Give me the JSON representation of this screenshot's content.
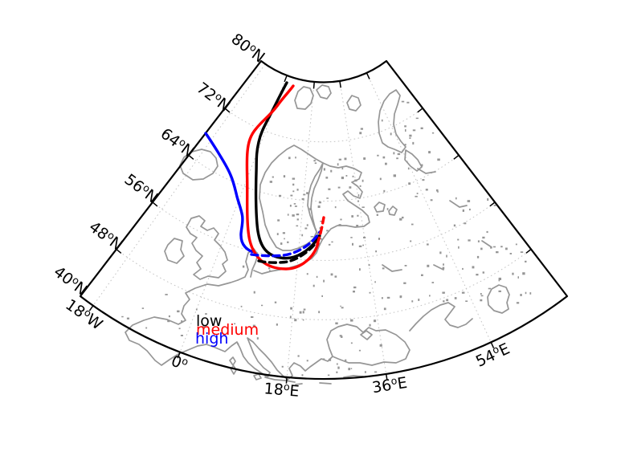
{
  "figure": {
    "background": "#ffffff",
    "kind": "fan-shaped conic map of Europe with three trajectories"
  },
  "axes": {
    "lat_labels": [
      {
        "value": "80",
        "sup": "o",
        "hem": "N"
      },
      {
        "value": "72",
        "sup": "o",
        "hem": "N"
      },
      {
        "value": "64",
        "sup": "o",
        "hem": "N"
      },
      {
        "value": "56",
        "sup": "o",
        "hem": "N"
      },
      {
        "value": "48",
        "sup": "o",
        "hem": "N"
      },
      {
        "value": "40",
        "sup": "o",
        "hem": "N"
      }
    ],
    "lon_labels": [
      {
        "value": "18",
        "sup": "o",
        "hem": "W"
      },
      {
        "value": "0",
        "sup": "o",
        "hem": ""
      },
      {
        "value": "18",
        "sup": "o",
        "hem": "E"
      },
      {
        "value": "36",
        "sup": "o",
        "hem": "E"
      },
      {
        "value": "54",
        "sup": "o",
        "hem": "E"
      }
    ]
  },
  "legend": {
    "items": [
      {
        "label": "low",
        "color": "#000000"
      },
      {
        "label": "medium",
        "color": "#ff0000"
      },
      {
        "label": "high",
        "color": "#0000ff"
      }
    ]
  },
  "trajectories": [
    {
      "name": "low",
      "color": "#000000",
      "style": "solid with dashed arrival segment"
    },
    {
      "name": "medium",
      "color": "#ff0000",
      "style": "solid with dashed arrival segment"
    },
    {
      "name": "high",
      "color": "#0000ff",
      "style": "solid with dashed arrival segment"
    }
  ],
  "map": {
    "boundary_color": "#000000",
    "coast_color": "#969696",
    "graticule_color": "#c4c4c4"
  }
}
